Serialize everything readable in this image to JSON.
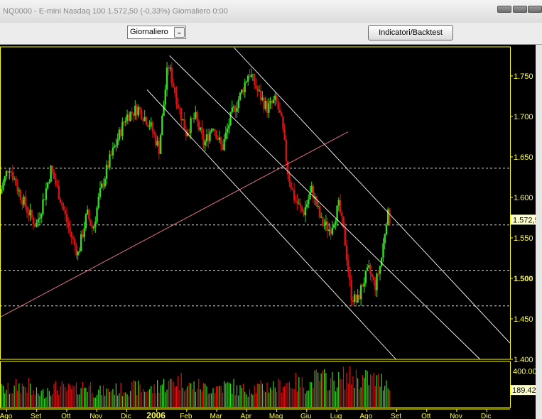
{
  "window": {
    "title": "NQ0000 - E-mini Nasdaq 100    1.572,50 (-0,33%)    Giornaliero  0:00"
  },
  "toolbar": {
    "period_select": "Giornaliero",
    "indicator_button": "Indicatori/Backtest"
  },
  "chart_data": {
    "type": "candlestick",
    "price_axis": {
      "range": [
        1400,
        1785
      ],
      "ticks": [
        "1.750",
        "1.700",
        "1.650",
        "1.600",
        "1.550",
        "1.500",
        "1.450",
        "1.400"
      ],
      "current_price_label": "1.572,5",
      "current_price": 1572.5
    },
    "volume_axis": {
      "range": [
        0,
        500000
      ],
      "ticks": [
        "400.000"
      ],
      "current_volume_label": "189.426",
      "current_volume": 189426
    },
    "time_axis": {
      "range": [
        0,
        17
      ],
      "labels": [
        {
          "label": "Ago",
          "t": 0.2
        },
        {
          "label": "Set",
          "t": 1.2
        },
        {
          "label": "Ott",
          "t": 2.2
        },
        {
          "label": "Nov",
          "t": 3.2
        },
        {
          "label": "Dic",
          "t": 4.2
        },
        {
          "label": "2006",
          "t": 5.2,
          "bold": true
        },
        {
          "label": "Feb",
          "t": 6.2
        },
        {
          "label": "Mar",
          "t": 7.2
        },
        {
          "label": "Apr",
          "t": 8.2
        },
        {
          "label": "Mag",
          "t": 9.2
        },
        {
          "label": "Giu",
          "t": 10.2
        },
        {
          "label": "Lug",
          "t": 11.2
        },
        {
          "label": "Ago",
          "t": 12.2
        },
        {
          "label": "Set",
          "t": 13.2
        },
        {
          "label": "Ott",
          "t": 14.2
        },
        {
          "label": "Nov",
          "t": 15.2
        },
        {
          "label": "Dic",
          "t": 16.2
        }
      ]
    },
    "price_path": [
      [
        0.0,
        1605
      ],
      [
        0.3,
        1640
      ],
      [
        0.6,
        1610
      ],
      [
        0.9,
        1585
      ],
      [
        1.2,
        1565
      ],
      [
        1.4,
        1590
      ],
      [
        1.7,
        1635
      ],
      [
        2.0,
        1600
      ],
      [
        2.3,
        1560
      ],
      [
        2.6,
        1530
      ],
      [
        2.9,
        1580
      ],
      [
        3.1,
        1560
      ],
      [
        3.3,
        1600
      ],
      [
        3.6,
        1640
      ],
      [
        3.9,
        1670
      ],
      [
        4.2,
        1700
      ],
      [
        4.6,
        1710
      ],
      [
        5.0,
        1690
      ],
      [
        5.3,
        1660
      ],
      [
        5.6,
        1765
      ],
      [
        5.9,
        1720
      ],
      [
        6.2,
        1680
      ],
      [
        6.5,
        1700
      ],
      [
        6.8,
        1665
      ],
      [
        7.1,
        1690
      ],
      [
        7.4,
        1660
      ],
      [
        7.7,
        1700
      ],
      [
        8.0,
        1725
      ],
      [
        8.3,
        1755
      ],
      [
        8.6,
        1730
      ],
      [
        8.9,
        1710
      ],
      [
        9.2,
        1720
      ],
      [
        9.4,
        1690
      ],
      [
        9.6,
        1630
      ],
      [
        9.8,
        1600
      ],
      [
        10.1,
        1580
      ],
      [
        10.4,
        1610
      ],
      [
        10.7,
        1570
      ],
      [
        11.0,
        1560
      ],
      [
        11.3,
        1590
      ],
      [
        11.5,
        1545
      ],
      [
        11.7,
        1480
      ],
      [
        11.9,
        1470
      ],
      [
        12.1,
        1495
      ],
      [
        12.3,
        1510
      ],
      [
        12.5,
        1490
      ],
      [
        12.7,
        1520
      ],
      [
        12.9,
        1580
      ],
      [
        13.0,
        1572.5
      ]
    ],
    "volume_profile": [
      0.5,
      0.6,
      0.4,
      0.55,
      0.5,
      0.6,
      0.45,
      0.5,
      0.55,
      0.5,
      0.65,
      0.75,
      0.6,
      0.55,
      0.6,
      0.5,
      0.55,
      0.6,
      0.7,
      0.65,
      0.8,
      0.75,
      0.85,
      0.8,
      0.75,
      0.8
    ],
    "horizontal_levels": [
      1636,
      1566,
      1510,
      1466
    ],
    "trendlines": [
      {
        "color": "#ffffff",
        "points": [
          [
            5.65,
            1775
          ],
          [
            16.0,
            1400
          ]
        ]
      },
      {
        "color": "#ffffff",
        "points": [
          [
            4.9,
            1733
          ],
          [
            13.2,
            1400
          ]
        ]
      },
      {
        "color": "#ffffff",
        "points": [
          [
            7.8,
            1785
          ],
          [
            17.0,
            1420
          ]
        ]
      },
      {
        "color": "#ff7f93",
        "points": [
          [
            0.0,
            1452
          ],
          [
            11.6,
            1681
          ]
        ]
      }
    ],
    "colors": {
      "background": "#000000",
      "up": "#33dd22",
      "down": "#dd1111",
      "gridline": "#dddddd",
      "axis_text": "#ffff44",
      "border": "#ffff00"
    },
    "grid": false
  }
}
